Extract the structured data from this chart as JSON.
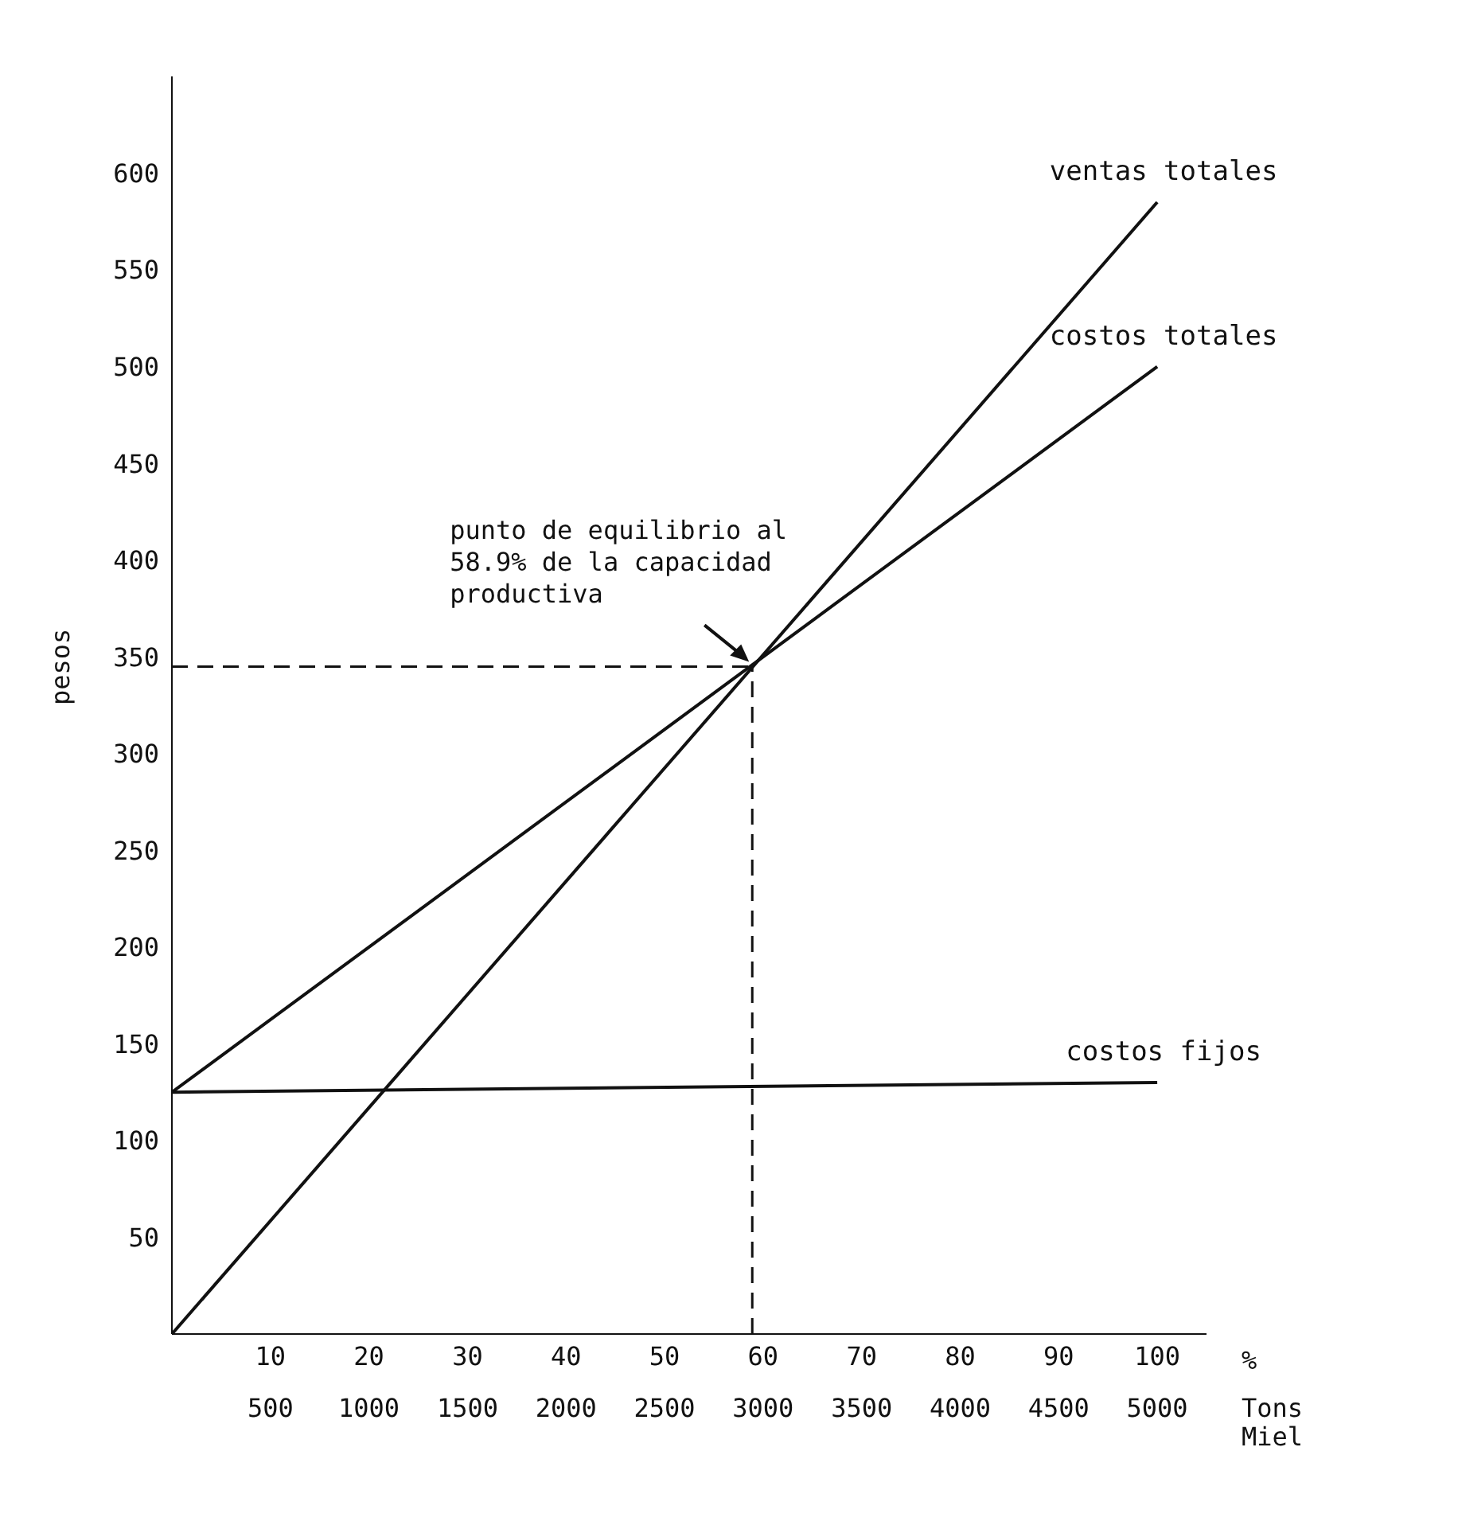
{
  "chart_data": {
    "type": "line",
    "xlabel": "%",
    "x2label": "Tons Miel",
    "ylabel": "pesos",
    "xlim": [
      0,
      105
    ],
    "xticks": [
      10,
      20,
      30,
      40,
      50,
      60,
      70,
      80,
      90,
      100
    ],
    "x2lim": [
      0,
      5250
    ],
    "x2ticks": [
      500,
      1000,
      1500,
      2000,
      2500,
      3000,
      3500,
      4000,
      4500,
      5000
    ],
    "ylim": [
      0,
      650
    ],
    "yticks": [
      50,
      100,
      150,
      200,
      250,
      300,
      350,
      400,
      450,
      500,
      550,
      600
    ],
    "x": [
      0,
      100
    ],
    "series": [
      {
        "name": "ventas totales",
        "color": "#111111",
        "values": [
          0,
          585
        ]
      },
      {
        "name": "costos totales",
        "color": "#111111",
        "values": [
          125,
          500
        ]
      },
      {
        "name": "costos fijos",
        "color": "#111111",
        "values": [
          125,
          130
        ]
      }
    ],
    "ref_lines": [
      {
        "axis": "y",
        "value": 345,
        "line_style": "dashed",
        "color": "#111111"
      },
      {
        "axis": "x",
        "value": 58.9,
        "line_style": "dashed",
        "color": "#111111"
      }
    ],
    "annotations": [
      {
        "text": "punto de equilibrio al 58.9% de la capacidad productiva",
        "x": 58.9,
        "y": 345
      }
    ],
    "grid": false,
    "legend": false,
    "marker": "none",
    "line_style": "solid"
  }
}
